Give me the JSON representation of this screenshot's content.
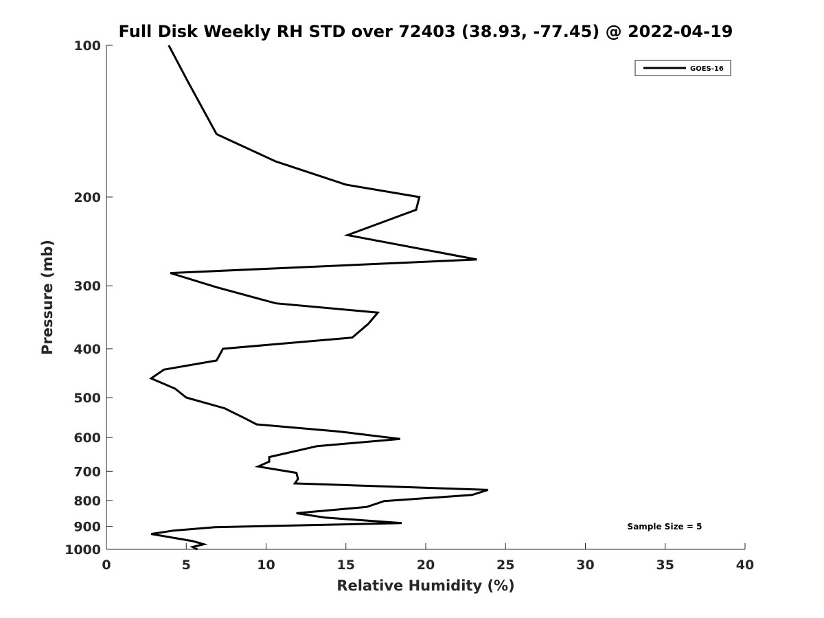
{
  "chart_data": {
    "type": "line",
    "title": "Full Disk Weekly RH STD over 72403 (38.93, -77.45) @ 2022-04-19",
    "xlabel": "Relative Humidity (%)",
    "ylabel": "Pressure (mb)",
    "xlim": [
      0,
      40
    ],
    "ylim": [
      1000,
      100
    ],
    "yscale": "log",
    "y_reversed": true,
    "x_ticks": [
      0,
      5,
      10,
      15,
      20,
      25,
      30,
      35,
      40
    ],
    "y_ticks": [
      100,
      200,
      300,
      400,
      500,
      600,
      700,
      800,
      900,
      1000
    ],
    "legend_position": "top-right",
    "grid": false,
    "annotation": "Sample Size = 5",
    "series": [
      {
        "name": "GOES-16",
        "color": "#000000",
        "x": [
          3.9,
          5.1,
          6.9,
          10.6,
          15.0,
          19.6,
          19.4,
          15.1,
          23.2,
          4.0,
          6.9,
          10.6,
          17.0,
          16.4,
          15.4,
          7.3,
          6.9,
          3.6,
          2.8,
          4.3,
          5.0,
          7.4,
          8.6,
          9.4,
          14.6,
          18.4,
          13.2,
          10.2,
          10.2,
          9.5,
          11.9,
          12.0,
          11.8,
          23.9,
          22.9,
          17.4,
          16.3,
          11.9,
          13.7,
          18.5,
          6.8,
          4.2,
          2.8,
          5.4,
          6.1,
          5.4,
          5.7
        ],
        "y": [
          100,
          118,
          150,
          170,
          189,
          200,
          212,
          238,
          266,
          283,
          302,
          325,
          339,
          357,
          380,
          400,
          422,
          440,
          458,
          480,
          500,
          525,
          548,
          565,
          584,
          604,
          624,
          656,
          670,
          685,
          705,
          725,
          740,
          762,
          780,
          802,
          824,
          848,
          865,
          887,
          904,
          918,
          932,
          963,
          977,
          989,
          1000
        ]
      }
    ]
  }
}
